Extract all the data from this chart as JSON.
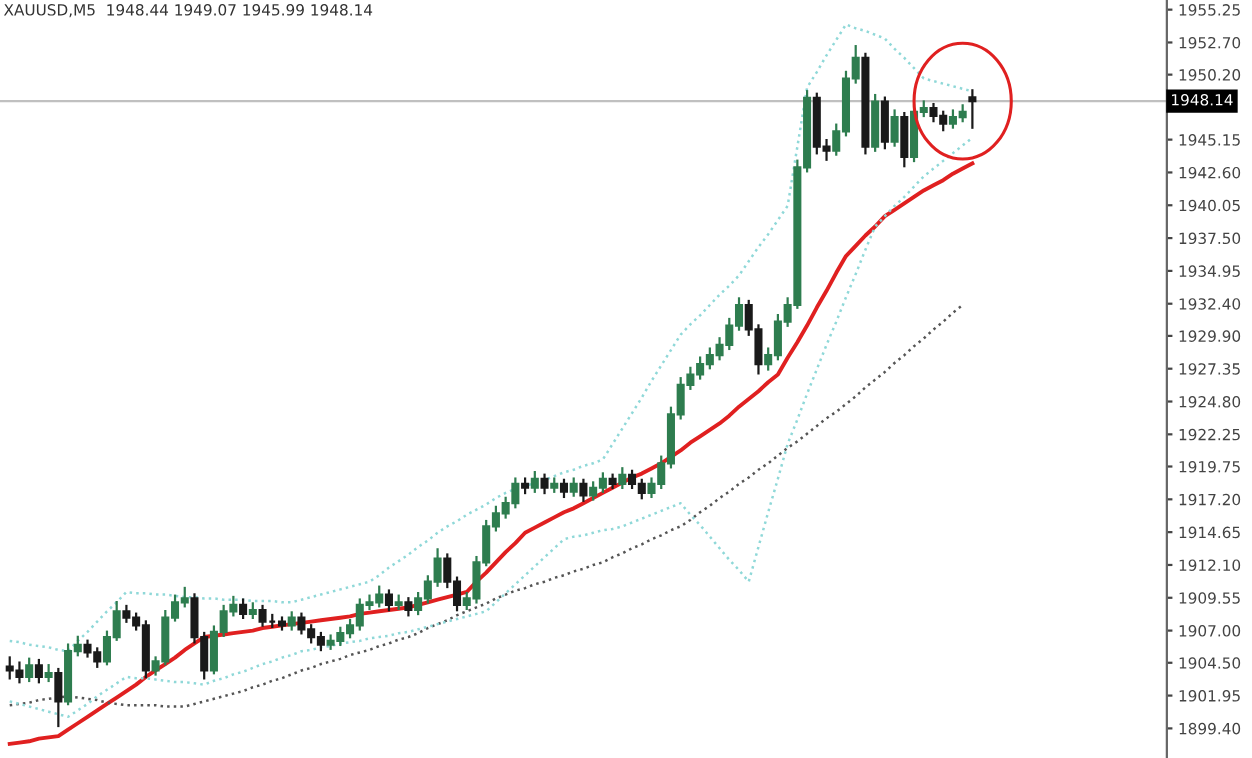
{
  "chart_data": {
    "type": "candlestick",
    "title": "XAUUSD,M5  1948.44 1949.07 1945.99 1948.14",
    "categories": [
      null,
      null,
      null,
      null,
      null,
      null,
      null,
      null,
      null,
      null,
      null,
      null,
      null,
      null,
      null,
      null,
      null,
      null,
      null,
      null,
      null,
      null,
      null,
      null,
      null,
      null,
      null,
      null,
      null,
      null,
      null,
      null,
      null,
      null,
      null,
      null,
      null,
      null,
      null,
      null,
      null,
      null,
      null,
      null,
      null,
      null,
      null,
      null,
      null,
      null,
      null,
      null,
      null,
      null,
      null,
      null,
      null,
      null,
      null,
      null,
      null,
      null,
      null,
      null,
      null,
      null,
      null,
      null,
      null,
      null,
      null,
      null,
      null,
      null,
      null,
      null,
      null,
      null,
      null,
      null,
      null,
      null,
      null,
      null,
      null,
      null,
      null,
      null,
      null,
      null,
      null,
      null,
      null,
      null,
      null,
      null,
      null,
      null,
      null,
      null
    ],
    "colors": [
      "#1a1a1a",
      "#1a1a1a",
      "#2e7d4f",
      "#1a1a1a",
      "#2e7d4f",
      "#1a1a1a",
      "#2e7d4f",
      "#2e7d4f",
      "#1a1a1a",
      "#1a1a1a",
      "#2e7d4f",
      "#2e7d4f",
      "#1a1a1a",
      "#1a1a1a",
      "#1a1a1a",
      "#2e7d4f",
      "#2e7d4f",
      "#2e7d4f",
      "#2e7d4f",
      "#1a1a1a",
      "#1a1a1a",
      "#2e7d4f",
      "#2e7d4f",
      "#2e7d4f",
      "#1a1a1a",
      "#2e7d4f",
      "#1a1a1a",
      "#1a1a1a",
      "#1a1a1a",
      "#2e7d4f",
      "#1a1a1a",
      "#1a1a1a",
      "#1a1a1a",
      "#2e7d4f",
      "#2e7d4f",
      "#2e7d4f",
      "#2e7d4f",
      "#2e7d4f",
      "#2e7d4f",
      "#1a1a1a",
      "#2e7d4f",
      "#1a1a1a",
      "#2e7d4f",
      "#2e7d4f",
      "#2e7d4f",
      "#1a1a1a",
      "#1a1a1a",
      "#2e7d4f",
      "#2e7d4f",
      "#2e7d4f",
      "#2e7d4f",
      "#2e7d4f",
      "#2e7d4f",
      "#1a1a1a",
      "#2e7d4f",
      "#1a1a1a",
      "#2e7d4f",
      "#1a1a1a",
      "#2e7d4f",
      "#1a1a1a",
      "#2e7d4f",
      "#2e7d4f",
      "#1a1a1a",
      "#2e7d4f",
      "#1a1a1a",
      "#1a1a1a",
      "#2e7d4f",
      "#2e7d4f",
      "#2e7d4f",
      "#2e7d4f",
      "#2e7d4f",
      "#2e7d4f",
      "#2e7d4f",
      "#2e7d4f",
      "#2e7d4f",
      "#2e7d4f",
      "#1a1a1a",
      "#1a1a1a",
      "#2e7d4f",
      "#2e7d4f",
      "#2e7d4f",
      "#2e7d4f",
      "#2e7d4f",
      "#1a1a1a",
      "#1a1a1a",
      "#2e7d4f",
      "#2e7d4f",
      "#2e7d4f",
      "#1a1a1a",
      "#2e7d4f",
      "#1a1a1a",
      "#2e7d4f",
      "#1a1a1a",
      "#2e7d4f",
      "#2e7d4f",
      "#1a1a1a",
      "#1a1a1a",
      "#2e7d4f",
      "#2e7d4f",
      "#1a1a1a"
    ],
    "ohlc": [
      [
        1904.2,
        1905.0,
        1903.2,
        1903.9
      ],
      [
        1903.9,
        1904.6,
        1902.9,
        1903.4
      ],
      [
        1903.4,
        1904.9,
        1903.0,
        1904.3
      ],
      [
        1904.3,
        1904.8,
        1902.9,
        1903.4
      ],
      [
        1903.4,
        1904.4,
        1903.0,
        1903.7
      ],
      [
        1903.7,
        1904.1,
        1899.5,
        1901.5
      ],
      [
        1901.5,
        1906.0,
        1901.2,
        1905.4
      ],
      [
        1905.4,
        1906.6,
        1905.0,
        1905.9
      ],
      [
        1905.9,
        1906.3,
        1904.9,
        1905.3
      ],
      [
        1905.3,
        1905.7,
        1904.1,
        1904.6
      ],
      [
        1904.6,
        1907.0,
        1904.3,
        1906.5
      ],
      [
        1906.5,
        1909.3,
        1906.2,
        1908.5
      ],
      [
        1908.5,
        1909.0,
        1907.6,
        1908.0
      ],
      [
        1908.0,
        1908.4,
        1907.0,
        1907.4
      ],
      [
        1907.4,
        1907.8,
        1903.3,
        1903.9
      ],
      [
        1903.9,
        1905.0,
        1903.5,
        1904.6
      ],
      [
        1904.6,
        1908.6,
        1904.3,
        1908.0
      ],
      [
        1908.0,
        1909.8,
        1907.7,
        1909.2
      ],
      [
        1909.2,
        1910.4,
        1908.8,
        1909.5
      ],
      [
        1909.5,
        1909.9,
        1906.0,
        1906.5
      ],
      [
        1906.5,
        1906.9,
        1903.2,
        1903.9
      ],
      [
        1903.9,
        1907.4,
        1903.6,
        1906.9
      ],
      [
        1906.9,
        1909.0,
        1906.5,
        1908.5
      ],
      [
        1908.5,
        1909.7,
        1908.1,
        1909.0
      ],
      [
        1909.0,
        1909.5,
        1907.9,
        1908.3
      ],
      [
        1908.3,
        1909.2,
        1907.9,
        1908.6
      ],
      [
        1908.6,
        1909.0,
        1907.3,
        1907.7
      ],
      [
        1907.7,
        1908.3,
        1907.2,
        1907.7
      ],
      [
        1907.7,
        1908.1,
        1907.0,
        1907.4
      ],
      [
        1907.4,
        1908.5,
        1907.0,
        1908.0
      ],
      [
        1908.0,
        1908.4,
        1906.7,
        1907.1
      ],
      [
        1907.1,
        1907.5,
        1906.0,
        1906.5
      ],
      [
        1906.5,
        1906.9,
        1905.4,
        1905.9
      ],
      [
        1905.9,
        1906.7,
        1905.5,
        1906.2
      ],
      [
        1906.2,
        1907.3,
        1905.8,
        1906.8
      ],
      [
        1906.8,
        1907.9,
        1906.4,
        1907.4
      ],
      [
        1907.4,
        1909.5,
        1907.0,
        1909.0
      ],
      [
        1909.0,
        1909.8,
        1908.6,
        1909.2
      ],
      [
        1909.2,
        1910.5,
        1908.8,
        1909.8
      ],
      [
        1909.8,
        1910.2,
        1908.5,
        1909.0
      ],
      [
        1909.0,
        1909.8,
        1908.6,
        1909.2
      ],
      [
        1909.2,
        1909.6,
        1908.1,
        1908.6
      ],
      [
        1908.6,
        1910.0,
        1908.2,
        1909.5
      ],
      [
        1909.5,
        1911.3,
        1909.1,
        1910.8
      ],
      [
        1910.8,
        1913.4,
        1910.4,
        1912.6
      ],
      [
        1912.6,
        1913.0,
        1910.3,
        1910.8
      ],
      [
        1910.8,
        1911.2,
        1908.5,
        1909.0
      ],
      [
        1909.0,
        1910.0,
        1908.6,
        1909.5
      ],
      [
        1909.5,
        1912.8,
        1909.1,
        1912.3
      ],
      [
        1912.3,
        1915.6,
        1912.0,
        1915.1
      ],
      [
        1915.1,
        1916.7,
        1914.7,
        1916.1
      ],
      [
        1916.1,
        1917.4,
        1915.7,
        1916.9
      ],
      [
        1916.9,
        1918.9,
        1916.5,
        1918.4
      ],
      [
        1918.4,
        1918.9,
        1917.6,
        1918.1
      ],
      [
        1918.1,
        1919.4,
        1917.7,
        1918.8
      ],
      [
        1918.8,
        1919.2,
        1917.6,
        1918.1
      ],
      [
        1918.1,
        1918.9,
        1917.7,
        1918.4
      ],
      [
        1918.4,
        1918.8,
        1917.3,
        1917.8
      ],
      [
        1917.8,
        1918.9,
        1917.4,
        1918.4
      ],
      [
        1918.4,
        1918.8,
        1917.0,
        1917.5
      ],
      [
        1917.5,
        1918.6,
        1917.1,
        1918.1
      ],
      [
        1918.1,
        1919.3,
        1917.7,
        1918.8
      ],
      [
        1918.8,
        1919.2,
        1918.0,
        1918.4
      ],
      [
        1918.4,
        1919.7,
        1918.0,
        1919.1
      ],
      [
        1919.1,
        1919.5,
        1918.0,
        1918.4
      ],
      [
        1918.4,
        1918.8,
        1917.2,
        1917.7
      ],
      [
        1917.7,
        1918.9,
        1917.3,
        1918.4
      ],
      [
        1918.4,
        1920.6,
        1918.0,
        1920.0
      ],
      [
        1920.0,
        1924.4,
        1919.6,
        1923.8
      ],
      [
        1923.8,
        1926.7,
        1923.4,
        1926.1
      ],
      [
        1926.1,
        1927.5,
        1925.7,
        1926.9
      ],
      [
        1926.9,
        1928.3,
        1926.5,
        1927.7
      ],
      [
        1927.7,
        1929.0,
        1927.3,
        1928.4
      ],
      [
        1928.4,
        1929.8,
        1928.0,
        1929.2
      ],
      [
        1929.2,
        1931.3,
        1928.8,
        1930.7
      ],
      [
        1930.7,
        1932.9,
        1930.3,
        1932.3
      ],
      [
        1932.3,
        1932.7,
        1929.9,
        1930.4
      ],
      [
        1930.4,
        1930.8,
        1926.9,
        1927.7
      ],
      [
        1927.7,
        1929.0,
        1927.2,
        1928.4
      ],
      [
        1928.4,
        1931.6,
        1928.0,
        1931.0
      ],
      [
        1931.0,
        1932.9,
        1930.6,
        1932.3
      ],
      [
        1932.3,
        1943.6,
        1932.0,
        1943.0
      ],
      [
        1943.0,
        1949.0,
        1942.6,
        1948.4
      ],
      [
        1948.4,
        1948.8,
        1944.0,
        1944.6
      ],
      [
        1944.6,
        1945.2,
        1943.5,
        1944.3
      ],
      [
        1944.3,
        1946.4,
        1943.9,
        1945.8
      ],
      [
        1945.8,
        1950.5,
        1945.4,
        1949.9
      ],
      [
        1949.9,
        1952.5,
        1949.5,
        1951.5
      ],
      [
        1951.5,
        1951.9,
        1944.0,
        1944.6
      ],
      [
        1944.6,
        1948.7,
        1944.2,
        1948.1
      ],
      [
        1948.1,
        1948.5,
        1944.4,
        1945.0
      ],
      [
        1945.0,
        1947.5,
        1944.6,
        1946.9
      ],
      [
        1946.9,
        1947.3,
        1943.0,
        1943.8
      ],
      [
        1943.8,
        1947.9,
        1943.4,
        1947.3
      ],
      [
        1947.3,
        1948.2,
        1946.9,
        1947.6
      ],
      [
        1947.6,
        1948.0,
        1946.5,
        1947.0
      ],
      [
        1947.0,
        1947.4,
        1945.8,
        1946.4
      ],
      [
        1946.4,
        1947.5,
        1946.0,
        1946.9
      ],
      [
        1946.9,
        1947.9,
        1946.5,
        1947.3
      ],
      [
        1948.44,
        1949.07,
        1945.99,
        1948.14
      ]
    ],
    "series": [
      {
        "type": "line",
        "color": "#e02020",
        "line_style": "solid",
        "values": [
          1898.2,
          1898.3,
          1898.4,
          1898.6,
          1898.7,
          1898.8,
          1899.3,
          1899.8,
          1900.3,
          1900.8,
          1901.3,
          1901.8,
          1902.3,
          1902.8,
          1903.4,
          1903.9,
          1904.4,
          1904.9,
          1905.5,
          1906.0,
          1906.5,
          1906.6,
          1906.7,
          1906.8,
          1906.9,
          1907.0,
          1907.2,
          1907.3,
          1907.4,
          1907.5,
          1907.6,
          1907.7,
          1907.8,
          1907.9,
          1908.0,
          1908.1,
          1908.3,
          1908.4,
          1908.5,
          1908.6,
          1908.7,
          1908.8,
          1909.0,
          1909.2,
          1909.4,
          1909.6,
          1909.8,
          1910.0,
          1910.8,
          1911.5,
          1912.3,
          1913.1,
          1913.8,
          1914.6,
          1915.0,
          1915.4,
          1915.8,
          1916.2,
          1916.5,
          1916.9,
          1917.3,
          1917.7,
          1918.1,
          1918.5,
          1918.9,
          1919.2,
          1919.6,
          1920.0,
          1920.5,
          1921.0,
          1921.6,
          1922.1,
          1922.6,
          1923.1,
          1923.7,
          1924.4,
          1925.0,
          1925.6,
          1926.3,
          1926.9,
          1928.2,
          1929.4,
          1930.7,
          1932.1,
          1933.4,
          1934.8,
          1936.1,
          1936.9,
          1937.7,
          1938.4,
          1939.2,
          1939.7,
          1940.2,
          1940.7,
          1941.2,
          1941.6,
          1942.0,
          1942.5,
          1942.9,
          1943.3
        ]
      },
      {
        "type": "line",
        "color": "#555555",
        "line_style": "dotted",
        "values": [
          1901.2,
          1901.3,
          1901.4,
          1901.6,
          1901.7,
          1901.8,
          1901.9,
          1901.8,
          1901.7,
          1901.6,
          1901.4,
          1901.3,
          1901.2,
          1901.2,
          1901.2,
          1901.2,
          1901.1,
          1901.1,
          1901.1,
          1901.3,
          1901.5,
          1901.7,
          1901.9,
          1902.1,
          1902.3,
          1902.6,
          1902.8,
          1903.1,
          1903.3,
          1903.6,
          1903.9,
          1904.1,
          1904.4,
          1904.6,
          1904.8,
          1905.1,
          1905.3,
          1905.5,
          1905.8,
          1906.0,
          1906.3,
          1906.5,
          1906.8,
          1907.2,
          1907.5,
          1907.8,
          1908.2,
          1908.5,
          1908.8,
          1909.1,
          1909.5,
          1909.8,
          1910.1,
          1910.3,
          1910.6,
          1910.8,
          1911.1,
          1911.3,
          1911.6,
          1911.8,
          1912.1,
          1912.3,
          1912.7,
          1913.0,
          1913.4,
          1913.7,
          1914.1,
          1914.4,
          1914.8,
          1915.1,
          1915.6,
          1916.2,
          1916.7,
          1917.3,
          1917.8,
          1918.4,
          1918.9,
          1919.5,
          1920.0,
          1920.6,
          1921.2,
          1921.7,
          1922.3,
          1922.9,
          1923.5,
          1924.0,
          1924.6,
          1925.2,
          1925.9,
          1926.5,
          1927.1,
          1927.8,
          1928.4,
          1929.1,
          1929.7,
          1930.4,
          1931.0,
          1931.7,
          1932.3,
          null
        ]
      },
      {
        "type": "line",
        "color": "#8fd8d8",
        "line_style": "dotted",
        "values": [
          1906.2,
          1906.1,
          1905.9,
          1905.8,
          1905.7,
          1905.5,
          1905.4,
          1906.2,
          1906.9,
          1907.7,
          1908.5,
          1909.2,
          1910.0,
          1909.9,
          1909.9,
          1909.8,
          1909.8,
          1909.7,
          1909.6,
          1909.6,
          1909.5,
          1909.5,
          1909.4,
          1909.4,
          1909.4,
          1909.3,
          1909.3,
          1909.3,
          1909.2,
          1909.2,
          1909.4,
          1909.6,
          1909.8,
          1910.0,
          1910.2,
          1910.4,
          1910.6,
          1910.8,
          1911.3,
          1911.9,
          1912.4,
          1912.9,
          1913.5,
          1914.0,
          1914.6,
          1915.1,
          1915.5,
          1916.0,
          1916.4,
          1916.8,
          1917.3,
          1917.7,
          1918.0,
          1918.2,
          1918.5,
          1918.7,
          1919.0,
          1919.3,
          1919.5,
          1919.8,
          1920.0,
          1920.3,
          1921.5,
          1922.7,
          1923.9,
          1925.1,
          1926.4,
          1927.6,
          1928.8,
          1930.0,
          1930.8,
          1931.5,
          1932.3,
          1933.1,
          1933.8,
          1934.6,
          1935.7,
          1936.8,
          1937.8,
          1938.9,
          1940.0,
          1944.6,
          1949.2,
          1950.4,
          1951.7,
          1952.9,
          1954.1,
          1953.8,
          1953.6,
          1953.3,
          1953.0,
          1952.2,
          1951.5,
          1950.7,
          1949.9,
          1949.7,
          1949.5,
          1949.3,
          1949.1,
          1948.9
        ]
      },
      {
        "type": "line",
        "color": "#8fd8d8",
        "line_style": "dotted",
        "values": [
          1901.5,
          1901.3,
          1901.1,
          1900.9,
          1900.7,
          1900.5,
          1900.3,
          1900.8,
          1901.3,
          1901.9,
          1902.4,
          1902.9,
          1903.4,
          1903.3,
          1903.3,
          1903.2,
          1903.1,
          1903.0,
          1903.0,
          1902.9,
          1902.8,
          1903.1,
          1903.3,
          1903.6,
          1903.8,
          1904.1,
          1904.4,
          1904.6,
          1904.9,
          1905.1,
          1905.4,
          1905.5,
          1905.7,
          1905.8,
          1906.0,
          1906.1,
          1906.2,
          1906.4,
          1906.5,
          1906.6,
          1906.8,
          1906.9,
          1907.1,
          1907.3,
          1907.5,
          1907.7,
          1907.9,
          1908.1,
          1908.3,
          1908.5,
          1909.2,
          1909.9,
          1910.6,
          1911.3,
          1912.0,
          1912.7,
          1913.4,
          1914.1,
          1914.3,
          1914.4,
          1914.6,
          1914.8,
          1914.9,
          1915.1,
          1915.4,
          1915.7,
          1916.0,
          1916.3,
          1916.6,
          1916.9,
          1916.0,
          1915.2,
          1914.3,
          1913.4,
          1912.5,
          1911.7,
          1910.8,
          1913.5,
          1916.2,
          1918.8,
          1921.5,
          1923.4,
          1925.4,
          1927.3,
          1929.2,
          1931.0,
          1932.9,
          1934.7,
          1936.6,
          1938.4,
          1939.2,
          1940.0,
          1940.7,
          1941.5,
          1942.3,
          1942.9,
          1943.5,
          1944.1,
          1944.7,
          1945.3
        ]
      }
    ],
    "ref_lines": [
      {
        "axis": "y",
        "value": 1948.14,
        "label": "1948.14",
        "color": "#c0c0c0",
        "line_style": "solid"
      }
    ],
    "ylim": [
      1897.1,
      1956.0
    ],
    "yticks": [
      {
        "value": 1955.25,
        "label": "1955.25"
      },
      {
        "value": 1952.7,
        "label": "1952.70"
      },
      {
        "value": 1950.2,
        "label": "1950.20"
      },
      {
        "value": 1945.15,
        "label": "1945.15"
      },
      {
        "value": 1942.6,
        "label": "1942.60"
      },
      {
        "value": 1940.05,
        "label": "1940.05"
      },
      {
        "value": 1937.5,
        "label": "1937.50"
      },
      {
        "value": 1934.95,
        "label": "1934.95"
      },
      {
        "value": 1932.4,
        "label": "1932.40"
      },
      {
        "value": 1929.9,
        "label": "1929.90"
      },
      {
        "value": 1927.35,
        "label": "1927.35"
      },
      {
        "value": 1924.8,
        "label": "1924.80"
      },
      {
        "value": 1922.25,
        "label": "1922.25"
      },
      {
        "value": 1919.75,
        "label": "1919.75"
      },
      {
        "value": 1917.2,
        "label": "1917.20"
      },
      {
        "value": 1914.65,
        "label": "1914.65"
      },
      {
        "value": 1912.1,
        "label": "1912.10"
      },
      {
        "value": 1909.55,
        "label": "1909.55"
      },
      {
        "value": 1907.0,
        "label": "1907.00"
      },
      {
        "value": 1904.5,
        "label": "1904.50"
      },
      {
        "value": 1901.95,
        "label": "1901.95"
      },
      {
        "value": 1899.4,
        "label": "1899.40"
      }
    ],
    "tick_labels": "y",
    "grid": false,
    "legend": false
  }
}
